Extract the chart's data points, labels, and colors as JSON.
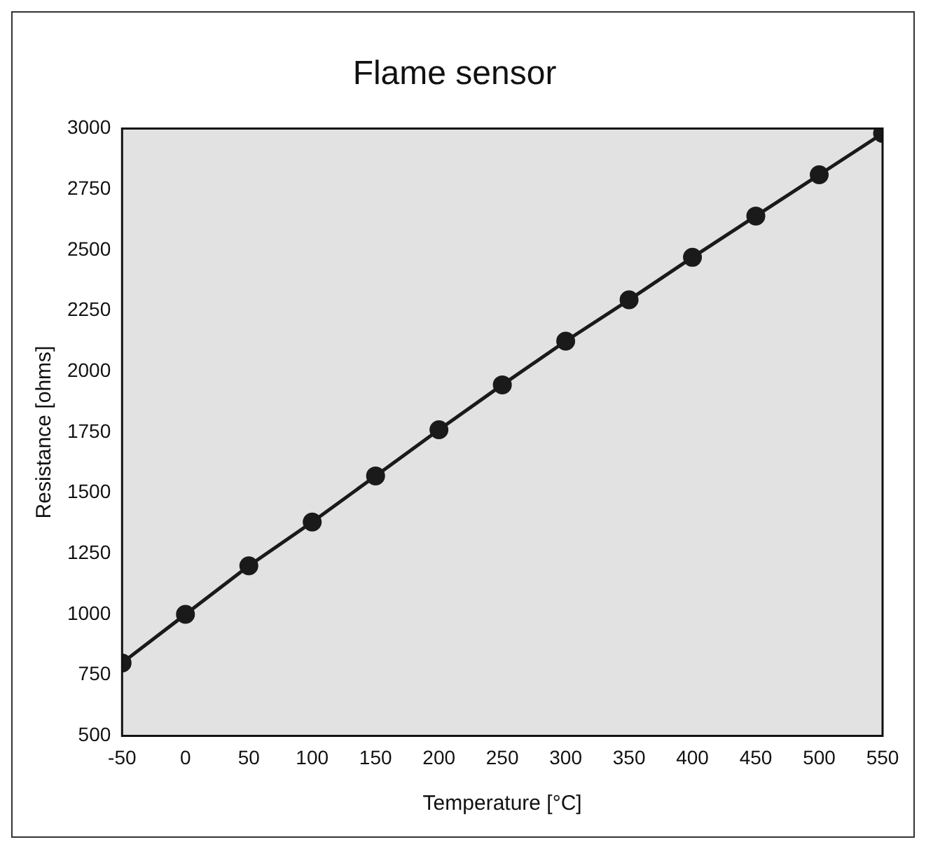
{
  "chart_data": {
    "type": "line",
    "title": "Flame sensor",
    "xlabel": "Temperature [°C]",
    "ylabel": "Resistance [ohms]",
    "x": [
      -50,
      0,
      50,
      100,
      150,
      200,
      250,
      300,
      350,
      400,
      450,
      500,
      550
    ],
    "series": [
      {
        "color": "#1a1a1a",
        "values": [
          800,
          1000,
          1200,
          1380,
          1570,
          1760,
          1945,
          2125,
          2295,
          2470,
          2640,
          2810,
          2980
        ]
      }
    ],
    "xlim": [
      -50,
      550
    ],
    "xticks": [
      -50,
      0,
      50,
      100,
      150,
      200,
      250,
      300,
      350,
      400,
      450,
      500,
      550
    ],
    "ylim": [
      500,
      3000
    ],
    "yticks": [
      500,
      750,
      1000,
      1250,
      1500,
      1750,
      2000,
      2250,
      2500,
      2750,
      3000
    ],
    "grid": false,
    "legend": false,
    "marker": "circle",
    "line_style": "solid"
  }
}
